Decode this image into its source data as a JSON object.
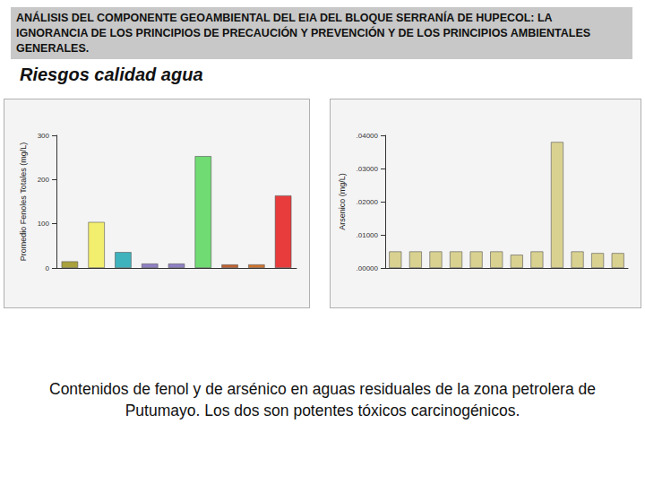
{
  "title": "ANÁLISIS DEL COMPONENTE GEOAMBIENTAL DEL EIA DEL BLOQUE SERRANÍA DE HUPECOL: LA IGNORANCIA DE LOS PRINCIPIOS DE PRECAUCIÓN Y PREVENCIÓN Y DE LOS PRINCIPIOS AMBIENTALES GENERALES.",
  "subtitle": "Riesgos calidad agua",
  "caption": "Contenidos de fenol y de arsénico en aguas residuales de la zona petrolera de Putumayo. Los dos son potentes tóxicos carcinogénicos.",
  "chart_data": [
    {
      "type": "bar",
      "y_label": "Promedio Fenoles Totales (mg/L)",
      "categories": [
        null,
        null,
        null,
        null,
        null,
        null,
        null,
        null,
        null
      ],
      "values": [
        15,
        104,
        36,
        10,
        10,
        253,
        8,
        8,
        164
      ],
      "colors": [
        "#a9a23c",
        "#f3ef6e",
        "#3fb3bd",
        "#8f7fc3",
        "#8f7fc3",
        "#6fdb72",
        "#c0602e",
        "#d0732c",
        "#e83c3c"
      ],
      "ylim": [
        0,
        300
      ],
      "yticks": [
        0,
        100,
        200,
        300
      ],
      "grid": false
    },
    {
      "type": "bar",
      "y_label": "Arsenico (mg/L)",
      "categories": [
        null,
        null,
        null,
        null,
        null,
        null,
        null,
        null,
        null,
        null,
        null,
        null
      ],
      "values": [
        0.005,
        0.005,
        0.005,
        0.005,
        0.005,
        0.005,
        0.004,
        0.005,
        0.038,
        0.005,
        0.0045,
        0.0045
      ],
      "color": "#d9d190",
      "ylim": [
        0,
        0.04
      ],
      "yticks": [
        {
          "value": 0,
          "label": ".00000"
        },
        {
          "value": 0.01,
          "label": ".01000"
        },
        {
          "value": 0.02,
          "label": ".02000"
        },
        {
          "value": 0.03,
          "label": ".03000"
        },
        {
          "value": 0.04,
          "label": ".04000"
        }
      ],
      "grid": false
    }
  ]
}
